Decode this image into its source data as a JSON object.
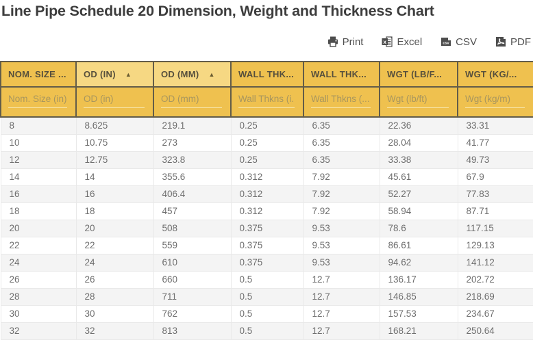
{
  "page": {
    "title": "Line Pipe Schedule 20 Dimension, Weight and Thickness Chart"
  },
  "toolbar": {
    "print_label": "Print",
    "excel_label": "Excel",
    "csv_label": "CSV",
    "pdf_label": "PDF"
  },
  "colors": {
    "header_bg": "#efc14f",
    "header_sorted_bg": "#f6d883",
    "header_border": "#625c49",
    "header_text": "#564f3c",
    "filter_placeholder": "#a8965e",
    "filter_underline": "#f7e6ae",
    "row_stripe": "#f4f4f4",
    "row_border": "#e9e9e9",
    "cell_text": "#6e6e6e",
    "title_text": "#3d3d3d",
    "icon_gray": "#4d4d4d"
  },
  "table": {
    "sort_arrow": "▲",
    "columns": [
      {
        "label": "NOM. SIZE ...",
        "placeholder": "Nom. Size (in)",
        "sorted": false
      },
      {
        "label": "OD (IN)",
        "placeholder": "OD (in)",
        "sorted": true
      },
      {
        "label": "OD (MM)",
        "placeholder": "OD (mm)",
        "sorted": true
      },
      {
        "label": "WALL THK...",
        "placeholder": "Wall Thkns (i...",
        "sorted": false
      },
      {
        "label": "WALL THK...",
        "placeholder": "Wall Thkns (...",
        "sorted": false
      },
      {
        "label": "WGT (LB/F...",
        "placeholder": "Wgt (lb/ft)",
        "sorted": false
      },
      {
        "label": "WGT (KG/...",
        "placeholder": "Wgt (kg/m)",
        "sorted": false
      }
    ],
    "rows": [
      [
        "8",
        "8.625",
        "219.1",
        "0.25",
        "6.35",
        "22.36",
        "33.31"
      ],
      [
        "10",
        "10.75",
        "273",
        "0.25",
        "6.35",
        "28.04",
        "41.77"
      ],
      [
        "12",
        "12.75",
        "323.8",
        "0.25",
        "6.35",
        "33.38",
        "49.73"
      ],
      [
        "14",
        "14",
        "355.6",
        "0.312",
        "7.92",
        "45.61",
        "67.9"
      ],
      [
        "16",
        "16",
        "406.4",
        "0.312",
        "7.92",
        "52.27",
        "77.83"
      ],
      [
        "18",
        "18",
        "457",
        "0.312",
        "7.92",
        "58.94",
        "87.71"
      ],
      [
        "20",
        "20",
        "508",
        "0.375",
        "9.53",
        "78.6",
        "117.15"
      ],
      [
        "22",
        "22",
        "559",
        "0.375",
        "9.53",
        "86.61",
        "129.13"
      ],
      [
        "24",
        "24",
        "610",
        "0.375",
        "9.53",
        "94.62",
        "141.12"
      ],
      [
        "26",
        "26",
        "660",
        "0.5",
        "12.7",
        "136.17",
        "202.72"
      ],
      [
        "28",
        "28",
        "711",
        "0.5",
        "12.7",
        "146.85",
        "218.69"
      ],
      [
        "30",
        "30",
        "762",
        "0.5",
        "12.7",
        "157.53",
        "234.67"
      ],
      [
        "32",
        "32",
        "813",
        "0.5",
        "12.7",
        "168.21",
        "250.64"
      ]
    ]
  }
}
